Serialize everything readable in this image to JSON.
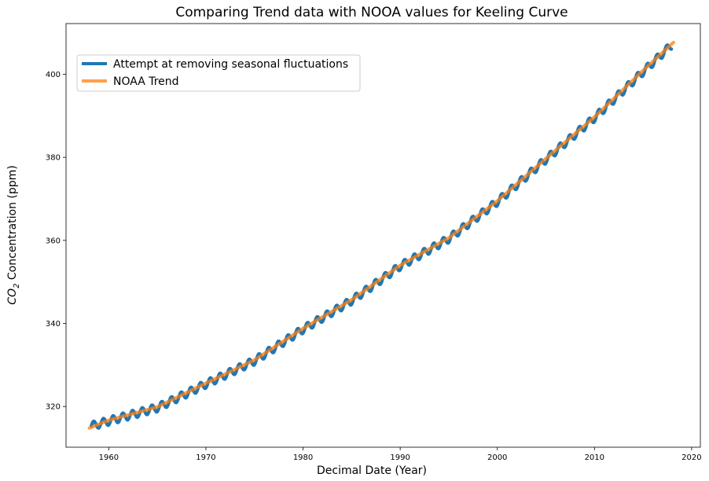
{
  "chart_data": {
    "type": "line",
    "title": "Comparing Trend data with NOOA values for Keeling Curve",
    "xlabel": "Decimal Date (Year)",
    "ylabel_prefix": "CO",
    "ylabel_subscript": "2",
    "ylabel_suffix": " Concentration (ppm)",
    "xlim": [
      1955.6,
      2020.9
    ],
    "ylim": [
      310.2,
      412.2
    ],
    "xticks": [
      1960,
      1970,
      1980,
      1990,
      2000,
      2010,
      2020
    ],
    "yticks": [
      320,
      340,
      360,
      380,
      400
    ],
    "grid": false,
    "legend_position": "upper-left",
    "series": [
      {
        "name": "Attempt at removing seasonal fluctuations",
        "color": "#1f77b4",
        "x_range": [
          1958.2,
          2018.0
        ],
        "x_step": 0.0833,
        "seasonal_amplitude": 1.0,
        "anchors": [
          [
            1958.2,
            315.3
          ],
          [
            1960,
            316.5
          ],
          [
            1965,
            319.7
          ],
          [
            1970,
            325.4
          ],
          [
            1975,
            331.0
          ],
          [
            1980,
            338.6
          ],
          [
            1985,
            345.5
          ],
          [
            1990,
            353.8
          ],
          [
            1995,
            360.4
          ],
          [
            2000,
            369.3
          ],
          [
            2005,
            379.5
          ],
          [
            2010,
            389.5
          ],
          [
            2015,
            400.6
          ],
          [
            2018.0,
            407.2
          ]
        ]
      },
      {
        "name": "NOAA Trend",
        "color": "#ff7f0e",
        "x_range": [
          1958.0,
          2018.2
        ],
        "x_step": 0.0833,
        "anchors": [
          [
            1958.0,
            314.8
          ],
          [
            1960,
            316.7
          ],
          [
            1965,
            319.9
          ],
          [
            1970,
            325.6
          ],
          [
            1975,
            331.2
          ],
          [
            1980,
            338.8
          ],
          [
            1985,
            345.7
          ],
          [
            1990,
            354.0
          ],
          [
            1995,
            360.6
          ],
          [
            2000,
            369.5
          ],
          [
            2005,
            379.7
          ],
          [
            2010,
            389.7
          ],
          [
            2015,
            400.9
          ],
          [
            2018.2,
            407.8
          ]
        ]
      }
    ]
  }
}
